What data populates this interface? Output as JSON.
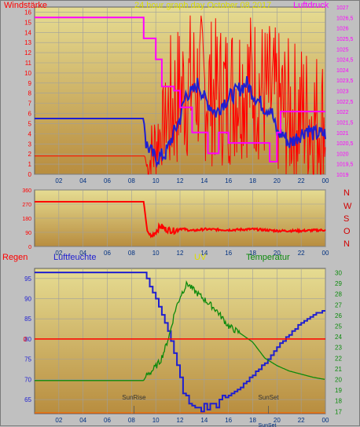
{
  "colors": {
    "bg": "#c0c0c0",
    "plot_top": "#e6dc92",
    "plot_bottom": "#b88d3f",
    "grid": "#9e9e9e",
    "wind_color": "#ff0000",
    "wind_avg_color": "#1f1fd0",
    "pressure_color": "#ff00ff",
    "direction_color": "#ff0000",
    "humidity_color": "#1f1fd0",
    "temperature_color": "#0c8a0c",
    "rain_color": "#ff0000",
    "uv_color": "#dddd00"
  },
  "header": {
    "wind_label": "Windstärke",
    "title": "24 hour graph day   October 08 2017",
    "pressure_label": "Luftdruck"
  },
  "middle": {
    "compass": [
      "N",
      "W",
      "S",
      "O",
      "N"
    ]
  },
  "bottom": {
    "rain_label": "Regen",
    "humidity_label": "Luftfeuchte",
    "uv_label": "UV",
    "temp_label": "Temperatur",
    "sunrise_label": "SunRise",
    "sunset_label": "SunSet",
    "sunset_bottom_label": "SunSet"
  },
  "x_ticks": [
    "02",
    "04",
    "06",
    "08",
    "10",
    "12",
    "14",
    "16",
    "18",
    "20",
    "22",
    "00"
  ],
  "chart_data": [
    {
      "type": "line",
      "x_range_hours": [
        0,
        24
      ],
      "y_left_ticks": [
        0,
        1,
        2,
        3,
        4,
        5,
        6,
        7,
        8,
        9,
        10,
        11,
        12,
        13,
        14,
        15,
        16
      ],
      "y_left_range": [
        0,
        16.5
      ],
      "y_right_ticks": [
        "1019",
        "1019,5",
        "1020",
        "1020,5",
        "1021",
        "1021,5",
        "1022",
        "1022,5",
        "1023",
        "1023,5",
        "1024",
        "1024,5",
        "1025",
        "1025,5",
        "1026",
        "1026,5",
        "1027"
      ],
      "y_right_range": [
        1019,
        1027
      ],
      "series": [
        {
          "name": "Windstärke",
          "axis": "left",
          "style": "gust-noise",
          "points": [
            [
              0,
              1.8
            ],
            [
              9.1,
              1.8
            ],
            [
              9.3,
              0.5
            ],
            [
              10,
              3
            ],
            [
              11,
              6
            ],
            [
              12,
              8
            ],
            [
              13,
              9
            ],
            [
              14,
              8.5
            ],
            [
              15,
              8
            ],
            [
              16,
              8
            ],
            [
              17,
              9
            ],
            [
              18,
              9
            ],
            [
              19,
              8
            ],
            [
              20,
              7
            ],
            [
              21,
              6
            ],
            [
              22,
              6
            ],
            [
              23,
              5.5
            ],
            [
              24,
              5
            ]
          ]
        },
        {
          "name": "Windmittel",
          "axis": "left",
          "style": "jagged",
          "points": [
            [
              0,
              5.5
            ],
            [
              9,
              5.5
            ],
            [
              9.2,
              3
            ],
            [
              10,
              1.5
            ],
            [
              10.8,
              2
            ],
            [
              11.3,
              3.5
            ],
            [
              12,
              5.5
            ],
            [
              12.5,
              8
            ],
            [
              13,
              8
            ],
            [
              13.5,
              9
            ],
            [
              14,
              7.5
            ],
            [
              15,
              6
            ],
            [
              15.5,
              7
            ],
            [
              16.5,
              8
            ],
            [
              17.5,
              9
            ],
            [
              18,
              8
            ],
            [
              19,
              6.5
            ],
            [
              19.5,
              6.5
            ],
            [
              20,
              4
            ],
            [
              20.5,
              4
            ],
            [
              21,
              3
            ],
            [
              22,
              4
            ],
            [
              22.5,
              4.5
            ],
            [
              23,
              4
            ],
            [
              24,
              4
            ]
          ]
        },
        {
          "name": "Luftdruck",
          "axis": "right",
          "style": "step",
          "points": [
            [
              0,
              1026.5
            ],
            [
              9,
              1026.5
            ],
            [
              9,
              1025.5
            ],
            [
              10,
              1025.5
            ],
            [
              10,
              1024.5
            ],
            [
              10.5,
              1024.5
            ],
            [
              10.5,
              1023.2
            ],
            [
              11.5,
              1023.2
            ],
            [
              11.5,
              1023
            ],
            [
              12,
              1023
            ],
            [
              12,
              1022.2
            ],
            [
              13,
              1022.2
            ],
            [
              13,
              1021
            ],
            [
              14.3,
              1021
            ],
            [
              14.3,
              1020
            ],
            [
              15.2,
              1020
            ],
            [
              15.2,
              1021
            ],
            [
              16,
              1021
            ],
            [
              16,
              1020.5
            ],
            [
              19.4,
              1020.5
            ],
            [
              19.4,
              1019.6
            ],
            [
              20,
              1019.6
            ],
            [
              20,
              1021
            ],
            [
              20.3,
              1021
            ],
            [
              20.3,
              1022
            ],
            [
              24,
              1022
            ]
          ]
        }
      ]
    },
    {
      "type": "line",
      "x_range_hours": [
        0,
        24
      ],
      "y_ticks": [
        0,
        90,
        180,
        270,
        360
      ],
      "y_range": [
        0,
        360
      ],
      "series": [
        {
          "name": "Windrichtung",
          "style": "noisy",
          "points": [
            [
              0,
              285
            ],
            [
              9,
              285
            ],
            [
              9.3,
              100
            ],
            [
              9.6,
              60
            ],
            [
              10,
              95
            ],
            [
              10.4,
              130
            ],
            [
              10.8,
              110
            ],
            [
              11.5,
              100
            ],
            [
              12,
              115
            ],
            [
              13,
              100
            ],
            [
              14,
              110
            ],
            [
              16,
              105
            ],
            [
              18,
              110
            ],
            [
              20,
              100
            ],
            [
              22,
              100
            ],
            [
              24,
              105
            ]
          ]
        }
      ]
    },
    {
      "type": "line",
      "x_range_hours": [
        0,
        24
      ],
      "y_left_ticks": [
        65,
        70,
        75,
        80,
        85,
        90,
        95
      ],
      "y_left_range": [
        61.5,
        97.5
      ],
      "y_right_ticks": [
        17,
        18,
        19,
        20,
        21,
        22,
        23,
        24,
        25,
        26,
        27,
        28,
        29,
        30
      ],
      "y_right_range": [
        16.8,
        30.4
      ],
      "rain_tick": "0",
      "series": [
        {
          "name": "Luftfeuchte",
          "axis": "left",
          "style": "step",
          "points": [
            [
              0,
              96.5
            ],
            [
              9,
              96.5
            ],
            [
              9.5,
              93
            ],
            [
              10,
              90
            ],
            [
              10.5,
              86
            ],
            [
              11,
              82
            ],
            [
              11.5,
              76
            ],
            [
              12,
              70
            ],
            [
              12.5,
              65
            ],
            [
              13,
              63
            ],
            [
              14,
              63
            ],
            [
              15,
              64
            ],
            [
              16,
              66
            ],
            [
              17,
              68
            ],
            [
              18,
              71
            ],
            [
              19,
              74
            ],
            [
              20,
              78
            ],
            [
              21,
              81
            ],
            [
              22,
              84
            ],
            [
              23,
              86
            ],
            [
              24,
              87
            ]
          ]
        },
        {
          "name": "Temperatur",
          "axis": "right",
          "style": "noisy",
          "points": [
            [
              0,
              19.9
            ],
            [
              9,
              19.9
            ],
            [
              9.3,
              20.5
            ],
            [
              9.6,
              20.7
            ],
            [
              10,
              21.2
            ],
            [
              10.4,
              21.8
            ],
            [
              10.8,
              23
            ],
            [
              11.2,
              24.5
            ],
            [
              11.6,
              26.5
            ],
            [
              12.1,
              28
            ],
            [
              12.6,
              29
            ],
            [
              13,
              28.5
            ],
            [
              13.5,
              28
            ],
            [
              14.5,
              27
            ],
            [
              15,
              26.5
            ],
            [
              16,
              25
            ],
            [
              17,
              24.3
            ],
            [
              18,
              23.5
            ],
            [
              19,
              22
            ],
            [
              20,
              21.3
            ],
            [
              21,
              20.8
            ],
            [
              22,
              20.5
            ],
            [
              23,
              20.2
            ],
            [
              24,
              20
            ]
          ]
        },
        {
          "name": "Regen",
          "axis": "left",
          "style": "flat",
          "points": [
            [
              0,
              80
            ],
            [
              24,
              80
            ]
          ]
        },
        {
          "name": "UV",
          "axis": "left",
          "style": "flat",
          "points": [
            [
              0,
              61.7
            ],
            [
              24,
              61.7
            ]
          ]
        }
      ],
      "annotations": [
        {
          "label": "SunRise",
          "x_hour": 8.2
        },
        {
          "label": "SunSet",
          "x_hour": 19.3
        }
      ]
    }
  ]
}
